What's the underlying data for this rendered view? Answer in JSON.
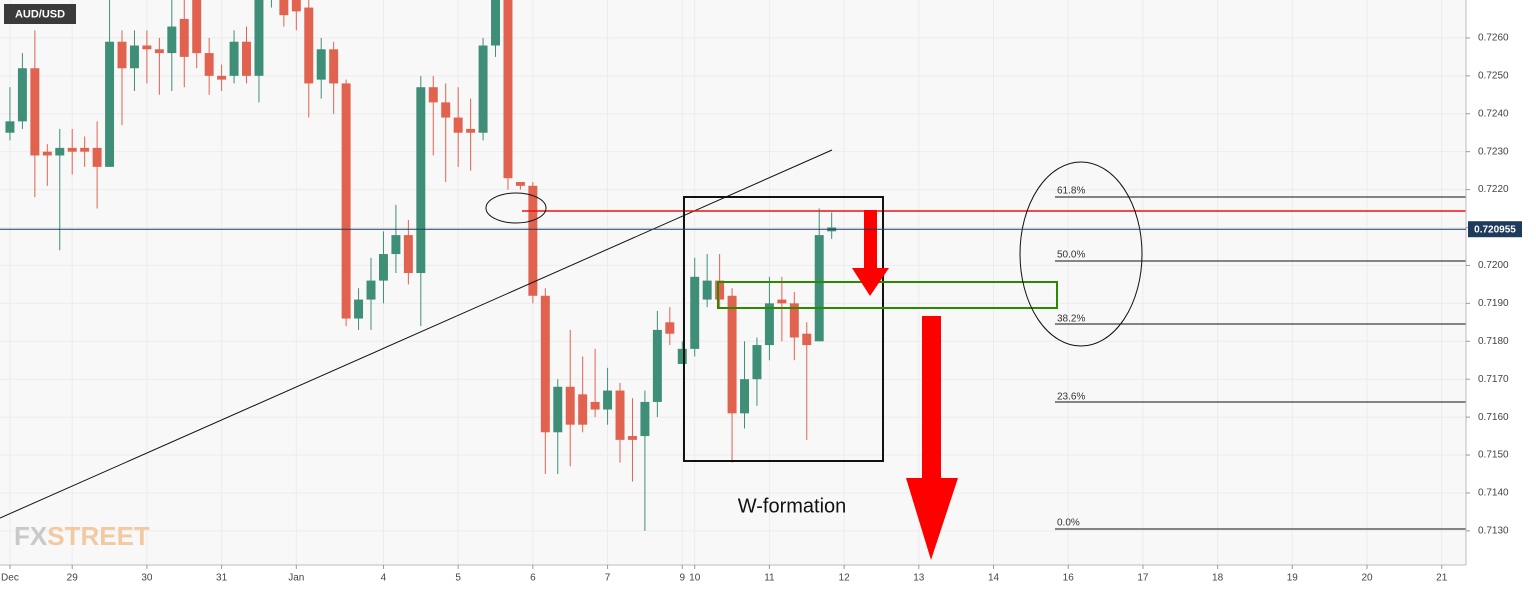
{
  "chart_data": {
    "type": "candlestick",
    "symbol": "AUD/USD",
    "colors": {
      "up": "#3e8e78",
      "down": "#e0624f"
    },
    "open": [
      0.7235,
      0.7238,
      0.7252,
      0.723,
      0.7229,
      0.7231,
      0.7231,
      0.7231,
      0.7226,
      0.7259,
      0.7252,
      0.7258,
      0.7257,
      0.7256,
      0.7265,
      0.727,
      0.7256,
      0.725,
      0.725,
      0.7259,
      0.725,
      0.7272,
      0.7272,
      0.727,
      0.7268,
      0.7249,
      0.7257,
      0.7248,
      0.7186,
      0.7191,
      0.7196,
      0.7203,
      0.7208,
      0.7198,
      0.7247,
      0.7243,
      0.7239,
      0.7236,
      0.7235,
      0.7258,
      0.7272,
      0.7222,
      0.7221,
      0.7192,
      0.7156,
      0.7168,
      0.7166,
      0.7164,
      0.7162,
      0.7167,
      0.7155,
      0.7155,
      0.7164,
      0.7185,
      0.7174,
      0.7178,
      0.7191,
      0.7196,
      0.7192,
      0.7161,
      0.717,
      0.7179,
      0.7191,
      0.719,
      0.7182,
      0.718,
      0.7209
    ],
    "high": [
      0.7247,
      0.7256,
      0.7262,
      0.7232,
      0.7236,
      0.7236,
      0.7234,
      0.7238,
      0.727,
      0.7262,
      0.7262,
      0.7262,
      0.726,
      0.727,
      0.727,
      0.7272,
      0.726,
      0.7253,
      0.7262,
      0.7263,
      0.7275,
      0.7278,
      0.7275,
      0.7272,
      0.727,
      0.726,
      0.7259,
      0.7249,
      0.7194,
      0.7202,
      0.7209,
      0.7216,
      0.7212,
      0.725,
      0.725,
      0.7248,
      0.7247,
      0.7244,
      0.726,
      0.7275,
      0.7275,
      0.7222,
      0.7222,
      0.7194,
      0.717,
      0.7183,
      0.7176,
      0.7178,
      0.7173,
      0.7169,
      0.7165,
      0.7167,
      0.7188,
      0.7189,
      0.718,
      0.7202,
      0.7203,
      0.7203,
      0.7194,
      0.718,
      0.7181,
      0.7197,
      0.7197,
      0.7193,
      0.7185,
      0.7215,
      0.7214
    ],
    "low": [
      0.7233,
      0.7236,
      0.7218,
      0.7221,
      0.7204,
      0.7224,
      0.7226,
      0.7215,
      0.7226,
      0.7237,
      0.7246,
      0.7248,
      0.7245,
      0.7246,
      0.7247,
      0.7252,
      0.7245,
      0.7246,
      0.7248,
      0.7248,
      0.7243,
      0.7268,
      0.7263,
      0.7262,
      0.7239,
      0.7244,
      0.724,
      0.7184,
      0.7183,
      0.7183,
      0.719,
      0.7198,
      0.7195,
      0.7184,
      0.7229,
      0.7222,
      0.7226,
      0.7225,
      0.7233,
      0.7255,
      0.722,
      0.722,
      0.719,
      0.7145,
      0.7145,
      0.7147,
      0.7156,
      0.716,
      0.7158,
      0.7148,
      0.7143,
      0.713,
      0.716,
      0.7179,
      0.7174,
      0.7176,
      0.7189,
      0.7189,
      0.7148,
      0.7157,
      0.7163,
      0.7175,
      0.718,
      0.7175,
      0.7154,
      0.718,
      0.7207
    ],
    "close": [
      0.7238,
      0.7252,
      0.7229,
      0.7229,
      0.7231,
      0.723,
      0.723,
      0.7226,
      0.7259,
      0.7252,
      0.7258,
      0.7257,
      0.7256,
      0.7263,
      0.7255,
      0.7256,
      0.725,
      0.7249,
      0.7259,
      0.725,
      0.7272,
      0.7275,
      0.7266,
      0.7267,
      0.7248,
      0.7257,
      0.7248,
      0.7186,
      0.7191,
      0.7196,
      0.7203,
      0.7208,
      0.7198,
      0.7247,
      0.7243,
      0.7239,
      0.7235,
      0.7235,
      0.7258,
      0.7272,
      0.7223,
      0.7221,
      0.7192,
      0.7156,
      0.7168,
      0.7158,
      0.7158,
      0.7162,
      0.7167,
      0.7154,
      0.7154,
      0.7164,
      0.7183,
      0.7182,
      0.7178,
      0.7197,
      0.7196,
      0.7191,
      0.7161,
      0.717,
      0.7179,
      0.719,
      0.719,
      0.7181,
      0.7179,
      0.7208,
      0.721
    ],
    "xlim": [
      -0.8,
      116.95
    ],
    "xticks": [
      {
        "value": 0,
        "label": "Dec"
      },
      {
        "value": 5,
        "label": "29"
      },
      {
        "value": 11,
        "label": "30"
      },
      {
        "value": 17,
        "label": "31"
      },
      {
        "value": 23,
        "label": "Jan"
      },
      {
        "value": 30,
        "label": "4"
      },
      {
        "value": 36,
        "label": "5"
      },
      {
        "value": 42,
        "label": "6"
      },
      {
        "value": 48,
        "label": "7"
      },
      {
        "value": 54,
        "label": "9"
      },
      {
        "value": 55,
        "label": "10"
      },
      {
        "value": 61,
        "label": "11"
      },
      {
        "value": 67,
        "label": "12"
      },
      {
        "value": 73,
        "label": "13"
      },
      {
        "value": 79,
        "label": "14"
      },
      {
        "value": 85,
        "label": "16"
      },
      {
        "value": 91,
        "label": "17"
      },
      {
        "value": 97,
        "label": "18"
      },
      {
        "value": 103,
        "label": "19"
      },
      {
        "value": 109,
        "label": "20"
      },
      {
        "value": 115,
        "label": "21"
      }
    ],
    "ylim": [
      0.7121,
      0.727
    ],
    "yticks": [
      {
        "value": 0.713,
        "label": "0.7130"
      },
      {
        "value": 0.714,
        "label": "0.7140"
      },
      {
        "value": 0.715,
        "label": "0.7150"
      },
      {
        "value": 0.716,
        "label": "0.7160"
      },
      {
        "value": 0.717,
        "label": "0.7170"
      },
      {
        "value": 0.718,
        "label": "0.7180"
      },
      {
        "value": 0.719,
        "label": "0.7190"
      },
      {
        "value": 0.72,
        "label": "0.7200"
      },
      {
        "value": 0.721,
        "label": "0.7210"
      },
      {
        "value": 0.722,
        "label": "0.7220"
      },
      {
        "value": 0.723,
        "label": "0.7230"
      },
      {
        "value": 0.724,
        "label": "0.7240"
      },
      {
        "value": 0.725,
        "label": "0.7250"
      },
      {
        "value": 0.726,
        "label": "0.7260"
      }
    ],
    "grid": true,
    "last_price": 0.720955,
    "fib_labels": [
      "61.8%",
      "50.0%",
      "38.2%",
      "23.6%",
      "0.0%"
    ],
    "annotation": "W-formation",
    "watermark": [
      "FX",
      "STREET"
    ]
  }
}
